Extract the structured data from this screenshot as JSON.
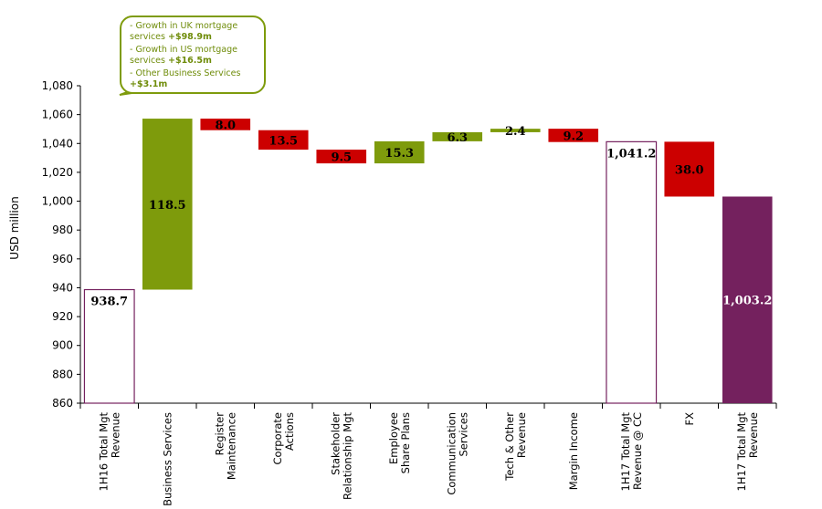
{
  "chart_data": {
    "type": "bar",
    "subtype": "waterfall",
    "ylabel": "USD million",
    "ylim": [
      860,
      1080
    ],
    "yticks": [
      "860",
      "880",
      "900",
      "920",
      "940",
      "960",
      "980",
      "1,000",
      "1,020",
      "1,040",
      "1,060",
      "1,080"
    ],
    "grid": false,
    "colors": {
      "increase": "#7e9b0c",
      "decrease": "#cc0000",
      "end_total": "#74215e",
      "total_outline": "#74215e"
    },
    "bars": [
      {
        "category": "1H16 Total Mgt\nRevenue",
        "kind": "total",
        "start": 860,
        "end": 938.7,
        "label": "938.7"
      },
      {
        "category": "Business Services",
        "kind": "increase",
        "start": 938.7,
        "end": 1057.2,
        "label": "118.5"
      },
      {
        "category": "Register\nMaintenance",
        "kind": "decrease",
        "start": 1057.2,
        "end": 1049.2,
        "label": "8.0"
      },
      {
        "category": "Corporate\nActions",
        "kind": "decrease",
        "start": 1049.2,
        "end": 1035.7,
        "label": "13.5"
      },
      {
        "category": "Stakeholder\nRelationship Mgt",
        "kind": "decrease",
        "start": 1035.7,
        "end": 1026.2,
        "label": "9.5"
      },
      {
        "category": "Employee\nShare Plans",
        "kind": "increase",
        "start": 1026.2,
        "end": 1041.5,
        "label": "15.3"
      },
      {
        "category": "Communication\nServices",
        "kind": "increase",
        "start": 1041.5,
        "end": 1047.8,
        "label": "6.3"
      },
      {
        "category": "Tech & Other\nRevenue",
        "kind": "increase",
        "start": 1047.8,
        "end": 1050.2,
        "label": "2.4"
      },
      {
        "category": "Margin Income",
        "kind": "decrease",
        "start": 1050.2,
        "end": 1041.0,
        "label": "9.2"
      },
      {
        "category": "1H17 Total Mgt\nRevenue @ CC",
        "kind": "total",
        "start": 860,
        "end": 1041.2,
        "label": "1,041.2"
      },
      {
        "category": "FX",
        "kind": "decrease",
        "start": 1041.2,
        "end": 1003.2,
        "label": "38.0"
      },
      {
        "category": "1H17 Total Mgt\nRevenue",
        "kind": "end_total",
        "start": 860,
        "end": 1003.2,
        "label": "1,003.2"
      }
    ],
    "annotations": [
      {
        "target": "Business Services",
        "lines": [
          {
            "text": "- Growth in UK mortgage\nservices ",
            "value": "+$98.9m"
          },
          {
            "text": "- Growth in US mortgage\nservices ",
            "value": "+$16.5m"
          },
          {
            "text": "- Other Business Services\n",
            "value": "+$3.1m"
          }
        ]
      }
    ]
  }
}
